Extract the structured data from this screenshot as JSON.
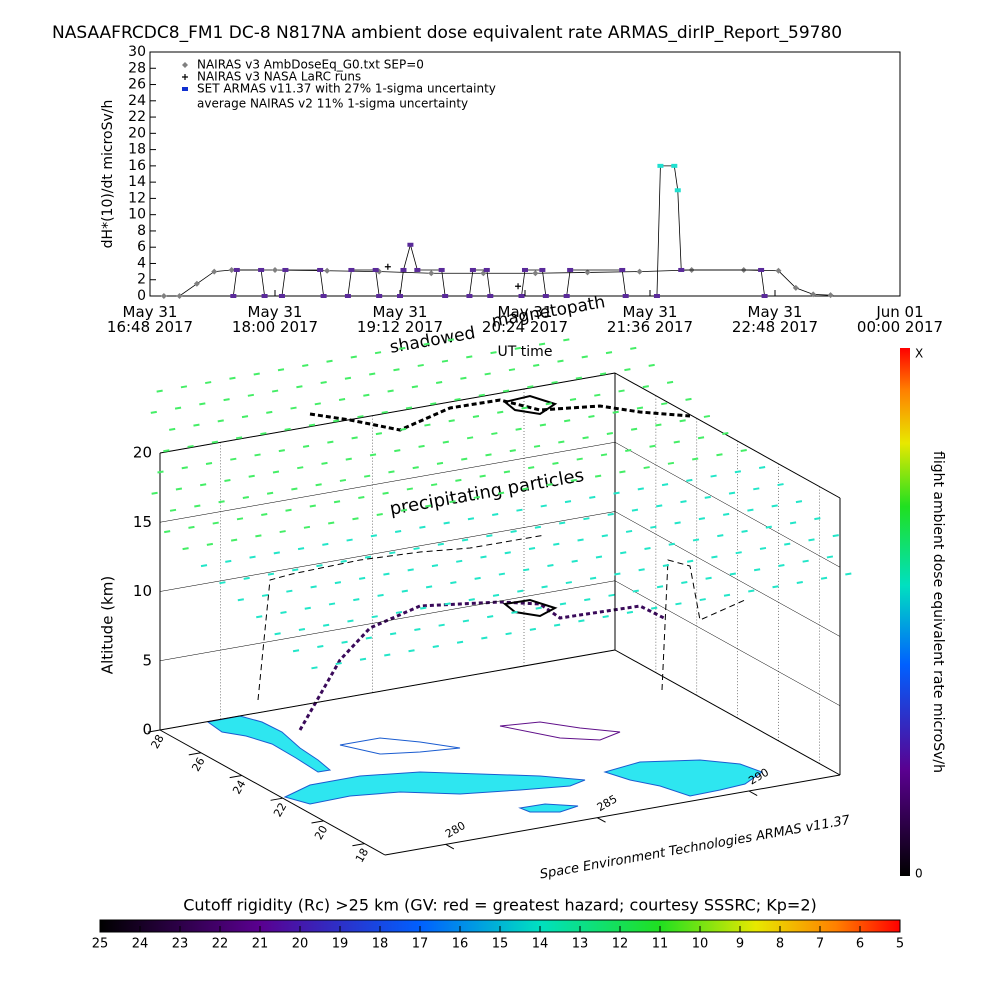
{
  "chart_data": [
    {
      "type": "line",
      "title": "NASAAFRCDC8_FM1 DC-8   N817NA ambient dose equivalent rate ARMAS_dirIP_Report_59780",
      "ylabel": "dH*(10)/dt microSv/h",
      "xlabel": "UT time",
      "xlim": [
        "2017-05-31 16:48",
        "2017-06-01 00:00"
      ],
      "xticks": [
        {
          "value": "2017-05-31 16:48",
          "label": "May 31\n16:48 2017"
        },
        {
          "value": "2017-05-31 18:00",
          "label": "May 31\n18:00 2017"
        },
        {
          "value": "2017-05-31 19:12",
          "label": "May 31\n19:12 2017"
        },
        {
          "value": "2017-05-31 20:24",
          "label": "May 31\n20:24 2017"
        },
        {
          "value": "2017-05-31 21:36",
          "label": "May 31\n21:36 2017"
        },
        {
          "value": "2017-05-31 22:48",
          "label": "May 31\n22:48 2017"
        },
        {
          "value": "2017-06-01 00:00",
          "label": "Jun 01\n00:00 2017"
        }
      ],
      "ylim": [
        0,
        30
      ],
      "yticks": [
        0,
        2,
        4,
        6,
        8,
        10,
        12,
        14,
        16,
        18,
        20,
        22,
        24,
        26,
        28,
        30
      ],
      "legend_note": "average NAIRAS v2 11% 1-sigma uncertainty",
      "series": [
        {
          "name": "NAIRAS v3 AmbDoseEq_G0.txt SEP=0",
          "color": "#808080",
          "marker": "diamond",
          "x": [
            "2017-05-31 16:56",
            "2017-05-31 17:05",
            "2017-05-31 17:15",
            "2017-05-31 17:25",
            "2017-05-31 17:35",
            "2017-05-31 18:00",
            "2017-05-31 18:30",
            "2017-05-31 19:00",
            "2017-05-31 19:30",
            "2017-05-31 20:00",
            "2017-05-31 20:30",
            "2017-05-31 21:00",
            "2017-05-31 21:30",
            "2017-05-31 22:00",
            "2017-05-31 22:30",
            "2017-05-31 22:50",
            "2017-05-31 23:00",
            "2017-05-31 23:10",
            "2017-05-31 23:20"
          ],
          "values": [
            0,
            0,
            1.5,
            3.0,
            3.2,
            3.2,
            3.1,
            3.0,
            2.8,
            2.8,
            2.8,
            2.9,
            3.0,
            3.2,
            3.2,
            3.1,
            1.0,
            0.2,
            0.1
          ]
        },
        {
          "name": "NAIRAS v3 NASA LaRC runs",
          "color": "#000000",
          "marker": "plus",
          "x": [
            "2017-05-31 19:05",
            "2017-05-31 20:20"
          ],
          "values": [
            3.6,
            1.2
          ]
        },
        {
          "name": "SET ARMAS v11.37 with 27% 1-sigma uncertainty",
          "color": "#5a2a9a",
          "marker": "square",
          "x": [
            "2017-05-31 17:36",
            "2017-05-31 17:38",
            "2017-05-31 17:52",
            "2017-05-31 17:54",
            "2017-05-31 18:04",
            "2017-05-31 18:06",
            "2017-05-31 18:26",
            "2017-05-31 18:28",
            "2017-05-31 18:42",
            "2017-05-31 18:44",
            "2017-05-31 18:58",
            "2017-05-31 19:00",
            "2017-05-31 19:12",
            "2017-05-31 19:14",
            "2017-05-31 19:18",
            "2017-05-31 19:22",
            "2017-05-31 19:36",
            "2017-05-31 19:38",
            "2017-05-31 19:52",
            "2017-05-31 19:54",
            "2017-05-31 20:02",
            "2017-05-31 20:04",
            "2017-05-31 20:22",
            "2017-05-31 20:24",
            "2017-05-31 20:34",
            "2017-05-31 20:36",
            "2017-05-31 20:48",
            "2017-05-31 20:50",
            "2017-05-31 21:20",
            "2017-05-31 21:22",
            "2017-05-31 21:40",
            "2017-05-31 21:42",
            "2017-05-31 21:50",
            "2017-05-31 21:52",
            "2017-05-31 21:54",
            "2017-05-31 22:40",
            "2017-05-31 22:42"
          ],
          "values": [
            0,
            3.2,
            3.2,
            0,
            0,
            3.2,
            3.2,
            0,
            0,
            3.2,
            3.2,
            0,
            0,
            3.2,
            6.3,
            3.2,
            3.2,
            0,
            0,
            3.2,
            3.2,
            0,
            0,
            3.2,
            3.2,
            0,
            0,
            3.2,
            3.2,
            0,
            0,
            16,
            16,
            13,
            3.2,
            3.2,
            0
          ]
        }
      ]
    },
    {
      "type": "3d",
      "zlabel": "Altitude (km)",
      "zlim": [
        0,
        20
      ],
      "zticks": [
        0,
        5,
        10,
        15,
        20
      ],
      "latlim": [
        17,
        28
      ],
      "latticks": [
        18,
        20,
        22,
        24,
        26,
        28
      ],
      "lonlim": [
        278,
        293
      ],
      "lonticks": [
        280,
        285,
        290
      ],
      "annotations": [
        "precipitating particles",
        "shadowed",
        "magnetopath"
      ],
      "credit": "Space Environment Technologies ARMAS v11.37",
      "colorbar_label": "flight ambient dose equivalent rate microSv/h",
      "colorbar_labels": [
        "0",
        "X"
      ]
    },
    {
      "type": "colorbar",
      "title": "Cutoff rigidity (Rc) >25 km (GV: red = greatest hazard; courtesy SSSRC; Kp=2)",
      "lim": [
        25,
        5
      ],
      "ticks": [
        25,
        24,
        23,
        22,
        21,
        20,
        19,
        18,
        17,
        16,
        15,
        14,
        13,
        12,
        11,
        10,
        9,
        8,
        7,
        6,
        5
      ]
    }
  ]
}
